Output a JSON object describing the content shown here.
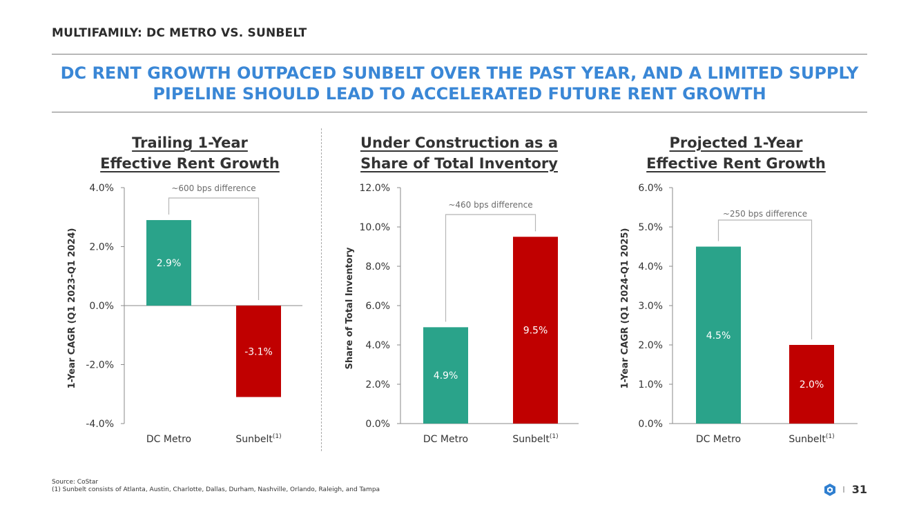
{
  "header": {
    "section_title": "MULTIFAMILY: DC METRO VS. SUNBELT",
    "headline_line1": "DC RENT GROWTH OUTPACED SUNBELT OVER THE PAST YEAR, AND A LIMITED SUPPLY",
    "headline_line2": "PIPELINE SHOULD LEAD TO ACCELERATED FUTURE RENT GROWTH"
  },
  "colors": {
    "dc": "#2aa38a",
    "sunbelt": "#c00000",
    "headline": "#3a87d6",
    "axis": "#666666"
  },
  "chart_data": [
    {
      "type": "bar",
      "title_line1": "Trailing 1-Year",
      "title_line2": "Effective Rent Growth",
      "ylabel": "1-Year CAGR (Q1 2023-Q1 2024)",
      "categories": [
        "DC Metro",
        "Sunbelt"
      ],
      "category_superscripts": [
        "",
        "(1)"
      ],
      "values": [
        2.9,
        -3.1
      ],
      "data_labels": [
        "2.9%",
        "-3.1%"
      ],
      "ylim": [
        -4.0,
        4.0
      ],
      "yticks": [
        -4.0,
        -2.0,
        0.0,
        2.0,
        4.0
      ],
      "ytick_labels": [
        "-4.0%",
        "-2.0%",
        "0.0%",
        "2.0%",
        "4.0%"
      ],
      "annotation": "~600 bps difference"
    },
    {
      "type": "bar",
      "title_line1": "Under Construction as a",
      "title_line2": "Share of Total Inventory",
      "ylabel": "Share of Total Inventory",
      "categories": [
        "DC Metro",
        "Sunbelt"
      ],
      "category_superscripts": [
        "",
        "(1)"
      ],
      "values": [
        4.9,
        9.5
      ],
      "data_labels": [
        "4.9%",
        "9.5%"
      ],
      "ylim": [
        0.0,
        12.0
      ],
      "yticks": [
        0.0,
        2.0,
        4.0,
        6.0,
        8.0,
        10.0,
        12.0
      ],
      "ytick_labels": [
        "0.0%",
        "2.0%",
        "4.0%",
        "6.0%",
        "8.0%",
        "10.0%",
        "12.0%"
      ],
      "annotation": "~460 bps difference"
    },
    {
      "type": "bar",
      "title_line1": "Projected 1-Year",
      "title_line2": "Effective Rent Growth",
      "ylabel": "1-Year CAGR (Q1 2024-Q1 2025)",
      "categories": [
        "DC Metro",
        "Sunbelt"
      ],
      "category_superscripts": [
        "",
        "(1)"
      ],
      "values": [
        4.5,
        2.0
      ],
      "data_labels": [
        "4.5%",
        "2.0%"
      ],
      "ylim": [
        0.0,
        6.0
      ],
      "yticks": [
        0.0,
        1.0,
        2.0,
        3.0,
        4.0,
        5.0,
        6.0
      ],
      "ytick_labels": [
        "0.0%",
        "1.0%",
        "2.0%",
        "3.0%",
        "4.0%",
        "5.0%",
        "6.0%"
      ],
      "annotation": "~250 bps difference"
    }
  ],
  "footer": {
    "source": "Source: CoStar",
    "note": "(1) Sunbelt consists of Atlanta, Austin, Charlotte, Dallas, Durham, Nashville, Orlando, Raleigh, and Tampa",
    "page_number": "31",
    "separator": "I",
    "logo_icon": "hexagon-logo-icon"
  }
}
